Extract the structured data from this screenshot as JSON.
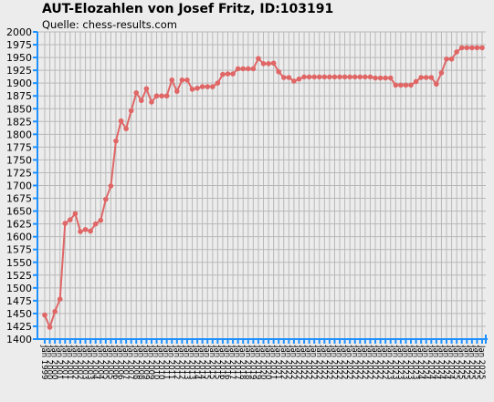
{
  "title": "AUT-Elozahlen von Josef Fritz, ID:103191",
  "subtitle": "Quelle: chess-results.com",
  "colors": {
    "background": "#ececec",
    "grid": "#b8b8b8",
    "axis": "#1e90ff",
    "line": "#e06666"
  },
  "chart_data": {
    "type": "line",
    "title": "AUT-Elozahlen von Josef Fritz, ID:103191",
    "subtitle": "Quelle: chess-results.com",
    "xlabel": "",
    "ylabel": "",
    "ylim": [
      1400,
      2000
    ],
    "yticks": [
      1400,
      1425,
      1450,
      1475,
      1500,
      1525,
      1550,
      1575,
      1600,
      1625,
      1650,
      1675,
      1700,
      1725,
      1750,
      1775,
      1800,
      1825,
      1850,
      1875,
      1900,
      1925,
      1950,
      1975,
      2000
    ],
    "grid": true,
    "legend": "none",
    "x": [
      "Jan 1999",
      "Jan 2000",
      "Jan 2000",
      "Jan 2001",
      "Jan 2001",
      "Jan 2001",
      "Jan 2002",
      "Jan 2002",
      "Jan 2003",
      "Jan 2003",
      "Jan 2004",
      "Jan 2004",
      "Jan 2005",
      "Jan 2005",
      "Jan 2006",
      "Jan 2006",
      "Jan 2007",
      "Jan 2007",
      "Jan 2008",
      "Jan 2008",
      "Jan 2009",
      "Jan 2009",
      "Jan 2010",
      "Jan 2010",
      "Jan 2011",
      "Jan 2011",
      "Jan 2012",
      "Jan 2012",
      "Jan 2013",
      "Jan 2013",
      "Jan 2014",
      "Jan 2014",
      "Jan 2015",
      "Jan 2015",
      "Jan 2015",
      "Jan 2016",
      "Jan 2016",
      "Jan 2017",
      "Jan 2017",
      "Jan 2018",
      "Jan 2018",
      "Jan 2019",
      "Jan 2019",
      "Jan 2020",
      "Jan 2020",
      "Jan 2021",
      "Jan 2021",
      "Jan 2022",
      "Jan 2022",
      "Jan 2022",
      "Jan 2022",
      "Jan 2022",
      "Jan 2022",
      "Jan 2022",
      "Jan 2022",
      "Jan 2022",
      "Jan 2022",
      "Jan 2022",
      "Jan 2022",
      "Jan 2022",
      "Jan 2022",
      "Jan 2022",
      "Jan 2022",
      "Jan 2022",
      "Jan 2022",
      "Jan 2022",
      "Jan 2022",
      "Jan 2022",
      "Jan 2023",
      "Jan 2023",
      "Jan 2023",
      "Jan 2023",
      "Jan 2023",
      "Jan 2023",
      "Jan 2024",
      "Jan 2024",
      "Jan 2024",
      "Jan 2024",
      "Jan 2024",
      "Jan 2024",
      "Jan 2024",
      "Jan 2025",
      "Jan 2025",
      "Jan 2025",
      "Jan 2025",
      "Jan 2025",
      "Jan 2025"
    ],
    "series": [
      {
        "values": [
          1447,
          1423,
          1454,
          1478,
          1626,
          1633,
          1645,
          1610,
          1614,
          1611,
          1625,
          1632,
          1673,
          1699,
          1787,
          1826,
          1811,
          1846,
          1881,
          1866,
          1889,
          1863,
          1875,
          1875,
          1875,
          1906,
          1884,
          1906,
          1906,
          1888,
          1890,
          1893,
          1893,
          1893,
          1900,
          1917,
          1918,
          1918,
          1928,
          1928,
          1928,
          1928,
          1948,
          1938,
          1938,
          1939,
          1922,
          1911,
          1911,
          1904,
          1908,
          1912,
          1912,
          1912,
          1912,
          1912,
          1912,
          1912,
          1912,
          1912,
          1912,
          1912,
          1912,
          1912,
          1912,
          1910,
          1910,
          1910,
          1910,
          1896,
          1896,
          1896,
          1896,
          1903,
          1911,
          1911,
          1911,
          1898,
          1920,
          1947,
          1947,
          1961,
          1969,
          1969,
          1969,
          1969,
          1969
        ]
      }
    ]
  },
  "x_tick_labels": [
    "Jan 1999",
    "Jan 2000",
    "Jan 2000",
    "Jan 2001",
    "Jan 2001",
    "Jan 2001",
    "Jan 2002",
    "Jan 2002",
    "Jan 2003",
    "Jan 2003",
    "Jan 2004",
    "Jan 2004",
    "Jan 2005",
    "Jan 2005",
    "Jan 2006",
    "Jan 2006",
    "Jan 2007",
    "Jan 2007",
    "Jan 2008",
    "Jan 2008",
    "Jan 2009",
    "Jan 2009",
    "Jan 2010",
    "Jan 2010",
    "Jan 2011",
    "Jan 2011",
    "Jan 2012",
    "Jan 2012",
    "Jan 2013",
    "Jan 2013",
    "Jan 2014",
    "Jan 2014",
    "Jan 2015",
    "Jan 2015",
    "Jan 2015",
    "Jan 2016",
    "Jan 2016",
    "Jan 2017",
    "Jan 2017",
    "Jan 2018",
    "Jan 2018",
    "Jan 2019",
    "Jan 2019",
    "Jan 2020",
    "Jan 2020",
    "Jan 2021",
    "Jan 2021",
    "Jan 2022",
    "Jan 2022",
    "Jan 2022",
    "Jan 2022",
    "Jan 2022",
    "Jan 2022",
    "Jan 2022",
    "Jan 2022",
    "Jan 2022",
    "Jan 2022",
    "Jan 2022",
    "Jan 2022",
    "Jan 2022",
    "Jan 2022",
    "Jan 2022",
    "Jan 2022",
    "Jan 2022",
    "Jan 2022",
    "Jan 2022",
    "Jan 2022",
    "Jan 2022",
    "Jan 2023",
    "Jan 2023",
    "Jan 2023",
    "Jan 2023",
    "Jan 2023",
    "Jan 2023",
    "Jan 2024",
    "Jan 2024",
    "Jan 2024",
    "Jan 2024",
    "Jan 2024",
    "Jan 2024",
    "Jan 2024",
    "Jan 2025",
    "Jan 2025",
    "Jan 2025",
    "Jan 2025",
    "Jan 2025",
    "Jan 2025"
  ]
}
